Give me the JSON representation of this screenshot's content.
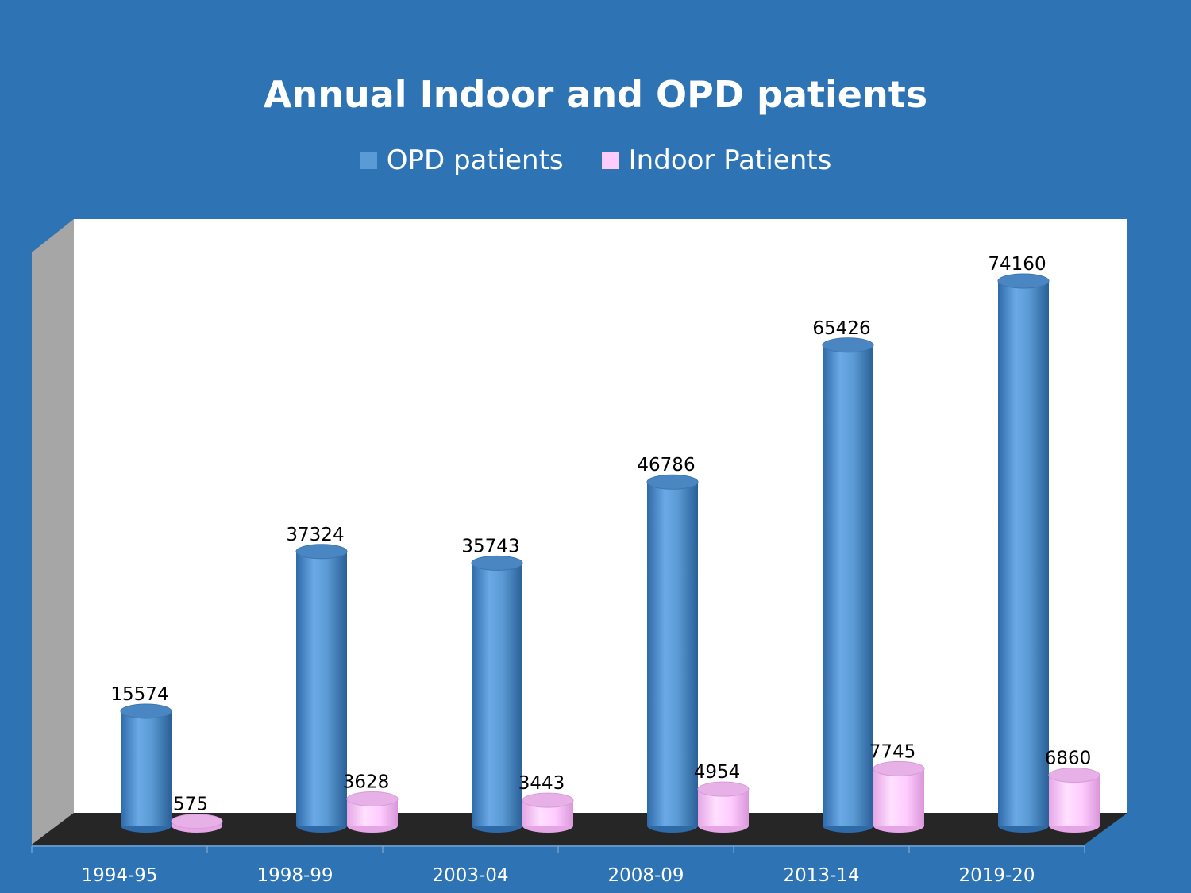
{
  "chart_data": {
    "type": "bar",
    "title": "Annual Indoor and OPD patients",
    "categories": [
      "1994-95",
      "1998-99",
      "2003-04",
      "2008-09",
      "2013-14",
      "2019-20"
    ],
    "series": [
      {
        "name": "OPD patients",
        "values": [
          15574,
          37324,
          35743,
          46786,
          65426,
          74160
        ],
        "color": "#5b9bd5"
      },
      {
        "name": "Indoor Patients",
        "values": [
          575,
          3628,
          3443,
          4954,
          7745,
          6860
        ],
        "color": "#ffccff"
      }
    ],
    "xlabel": "",
    "ylabel": "",
    "ylim": [
      0,
      80000
    ],
    "grid": false,
    "legend": "top-center",
    "style": "3d-cylinder"
  },
  "colors": {
    "background": "#2e74b5",
    "plot_wall": "#ffffff",
    "side_wall": "#a6a6a6",
    "floor": "#262626"
  }
}
